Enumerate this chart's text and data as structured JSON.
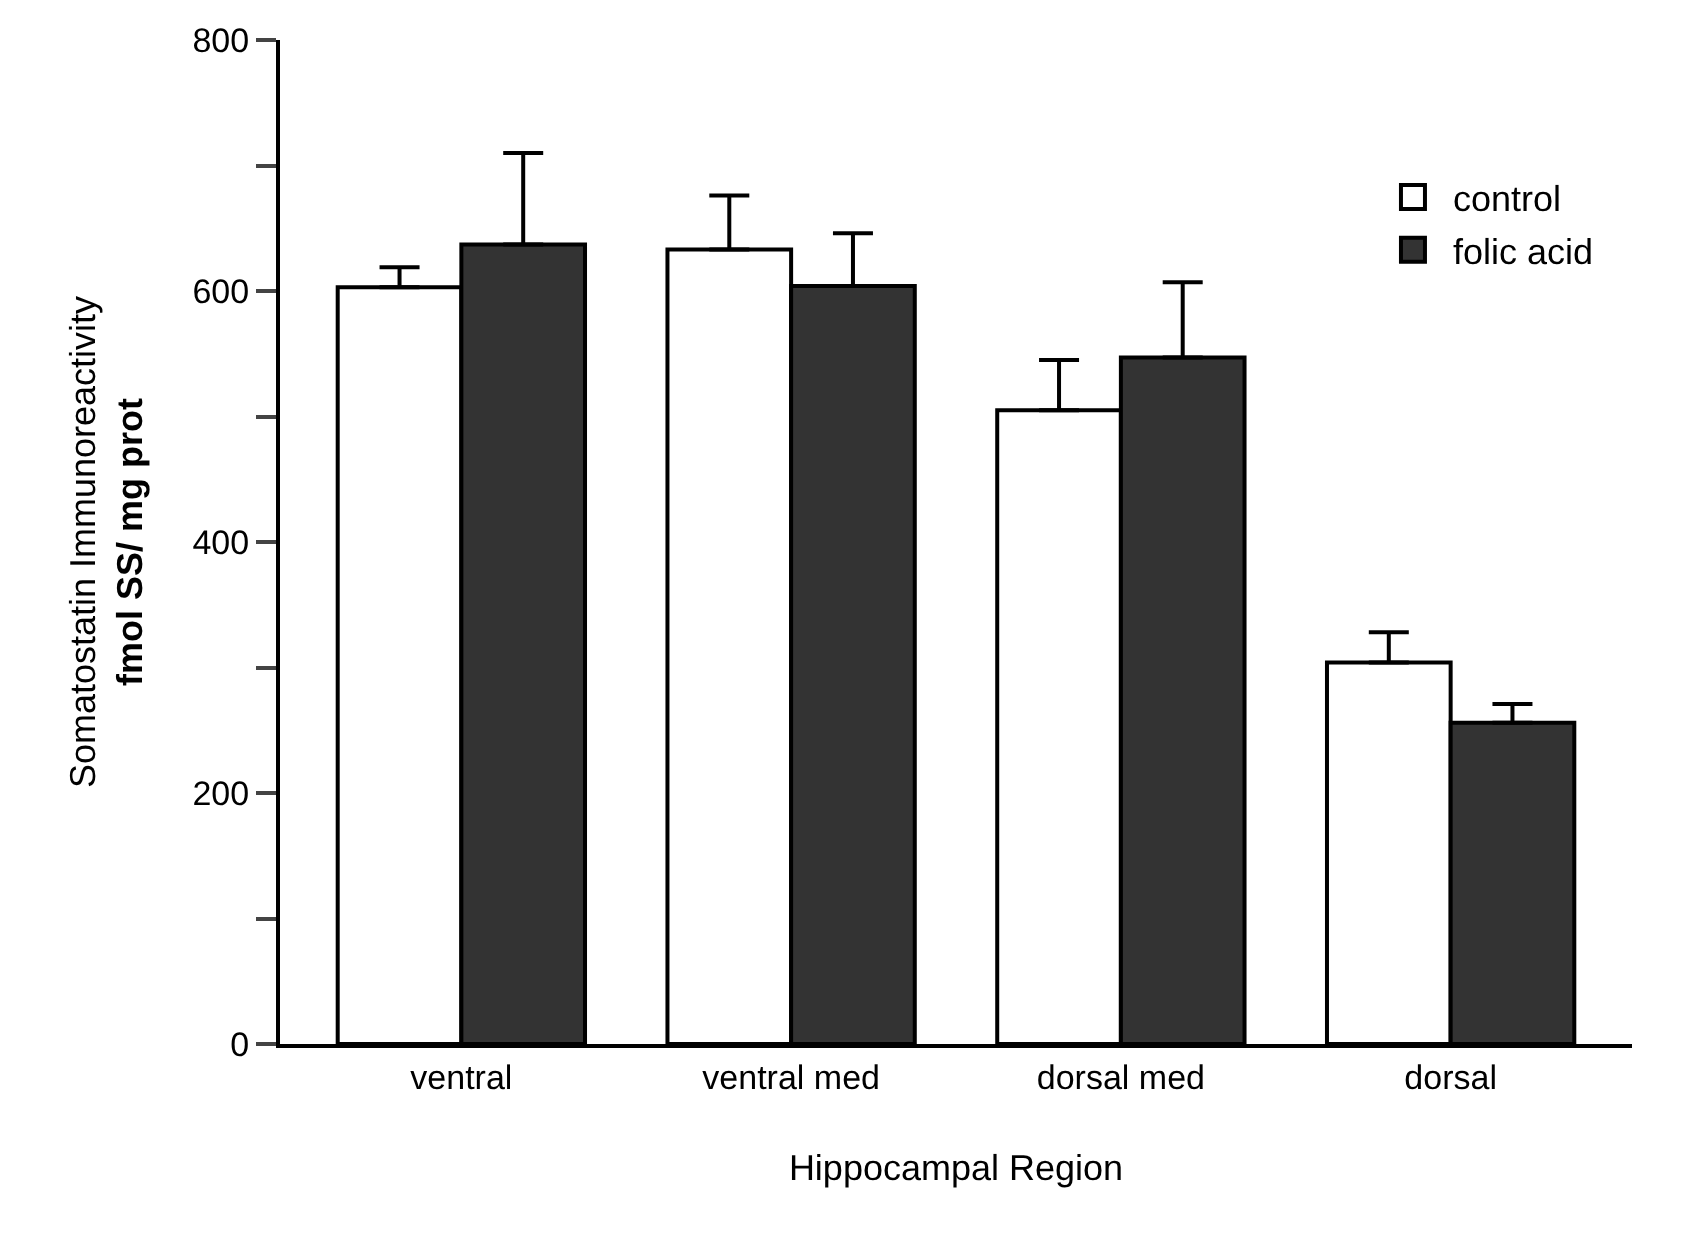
{
  "chart_data": {
    "type": "bar",
    "xlabel": "Hippocampal Region",
    "ylabel": "Somatostatin Immunoreactivity\nfmol SS/ mg prot",
    "categories": [
      "ventral",
      "ventral med",
      "dorsal med",
      "dorsal"
    ],
    "series": [
      {
        "name": "control",
        "color": "#ffffff",
        "values": [
          603,
          633,
          505,
          304
        ],
        "errors": [
          [
            603,
            619
          ],
          [
            633,
            676
          ],
          [
            505,
            545
          ],
          [
            304,
            328
          ]
        ]
      },
      {
        "name": "folic acid",
        "color": "#333333",
        "values": [
          637,
          604,
          547,
          256
        ],
        "errors": [
          [
            637,
            710
          ],
          [
            604,
            646
          ],
          [
            547,
            607
          ],
          [
            256,
            271
          ]
        ]
      }
    ],
    "ylim": [
      0,
      800
    ],
    "yticks": [
      0,
      {
        "value": 100,
        "label": null
      },
      200,
      {
        "value": 300,
        "label": null
      },
      400,
      {
        "value": 500,
        "label": null
      },
      600,
      {
        "value": 700,
        "label": null
      },
      800
    ],
    "grid": false,
    "legend": "top right"
  }
}
